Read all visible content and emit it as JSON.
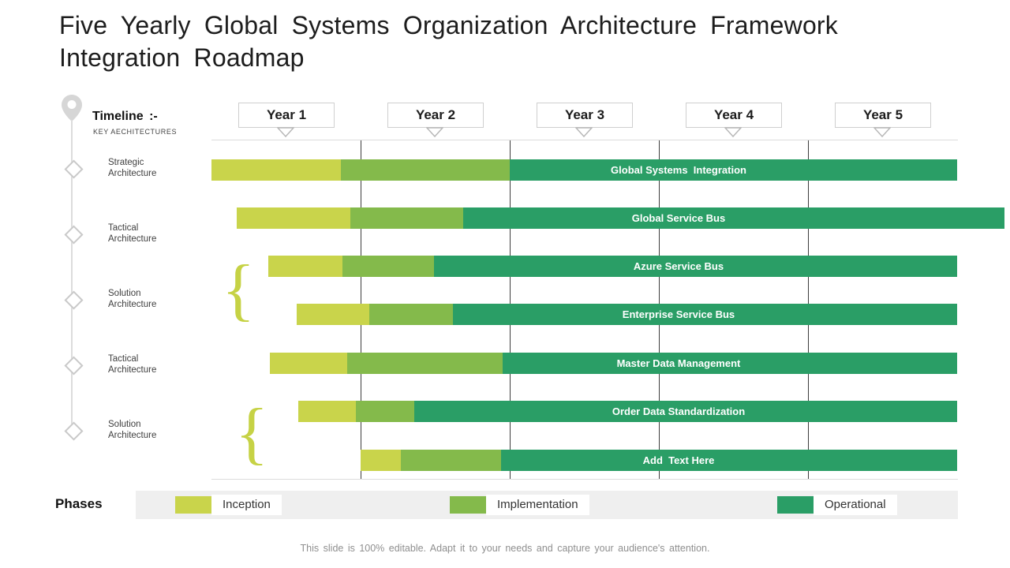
{
  "slide": {
    "title": "Five Yearly Global Systems Organization Architecture Framework Integration Roadmap",
    "footer": "This slide is 100% editable. Adapt it to your needs and capture your audience's attention."
  },
  "timeline": {
    "heading": "Timeline :-",
    "subheading": "KEY AECHITECTURES",
    "items": [
      "Strategic Architecture",
      "Tactical Architecture",
      "Solution Architecture",
      "Tactical Architecture",
      "Solution Architecture"
    ]
  },
  "years": [
    "Year 1",
    "Year 2",
    "Year 3",
    "Year 4",
    "Year 5"
  ],
  "phases": {
    "label": "Phases",
    "items": [
      {
        "name": "Inception",
        "color": "#c9d44b"
      },
      {
        "name": "Implementation",
        "color": "#84ba4b"
      },
      {
        "name": "Operational",
        "color": "#2a9e66"
      }
    ]
  },
  "icons": {
    "brace": "{"
  },
  "chart_data": {
    "type": "bar",
    "subtype": "gantt_roadmap",
    "title": "Five Yearly Global Systems Organization Architecture Framework Integration Roadmap",
    "x_unit": "years",
    "x_range": [
      0,
      5
    ],
    "x_ticks": [
      "Year 1",
      "Year 2",
      "Year 3",
      "Year 4",
      "Year 5"
    ],
    "phases": [
      "Inception",
      "Implementation",
      "Operational"
    ],
    "grid": "vertical-year-boundaries",
    "legend_position": "bottom",
    "bars": [
      {
        "label": "Global Systems  Integration",
        "start": 0.0,
        "inception_end": 0.87,
        "implementation_end": 2.0,
        "operational_end": 5.0
      },
      {
        "label": "Global Service Bus",
        "start": 0.17,
        "inception_end": 0.93,
        "implementation_end": 1.69,
        "operational_end": 5.32
      },
      {
        "label": "Azure Service Bus",
        "start": 0.38,
        "inception_end": 0.88,
        "implementation_end": 1.49,
        "operational_end": 5.0
      },
      {
        "label": "Enterprise Service Bus",
        "start": 0.57,
        "inception_end": 1.06,
        "implementation_end": 1.62,
        "operational_end": 5.0
      },
      {
        "label": "Master Data Management",
        "start": 0.39,
        "inception_end": 0.91,
        "implementation_end": 1.95,
        "operational_end": 5.0
      },
      {
        "label": "Order Data Standardization",
        "start": 0.58,
        "inception_end": 0.97,
        "implementation_end": 1.36,
        "operational_end": 5.0
      },
      {
        "label": "Add  Text Here",
        "start": 1.0,
        "inception_end": 1.27,
        "implementation_end": 1.94,
        "operational_end": 5.0
      }
    ]
  }
}
